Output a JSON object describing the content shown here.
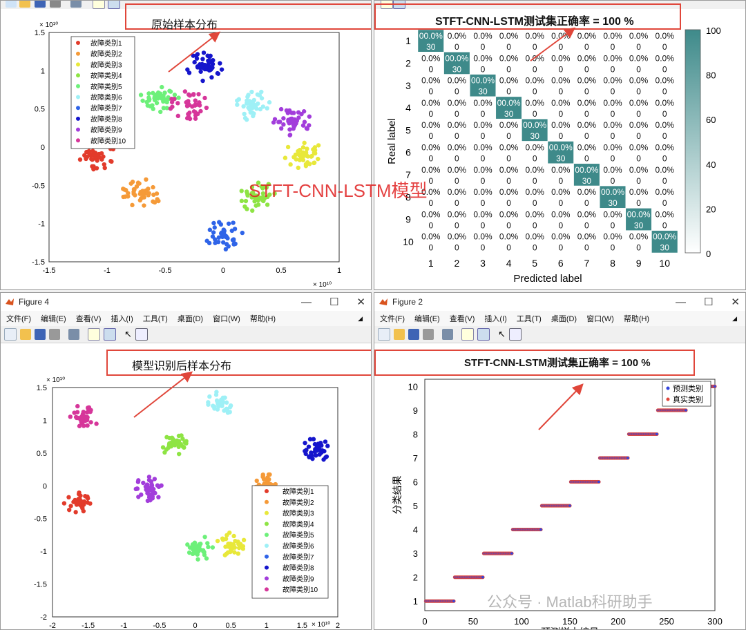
{
  "colors": {
    "c1": "#e23b2b",
    "c2": "#f59a38",
    "c3": "#e8e83a",
    "c4": "#8ee444",
    "c5": "#6df07a",
    "c6": "#9ef0f6",
    "c7": "#2f64e8",
    "c8": "#1515cc",
    "c9": "#a23ddb",
    "c10": "#d6369a",
    "accent_red": "#e0463a",
    "cm_dark": "#3e8a8a"
  },
  "top_left": {
    "annotation": "原始样本分布",
    "y_exp": "× 10¹⁰",
    "x_exp": "× 10¹⁰",
    "yticks": [
      "1.5",
      "1",
      "0.5",
      "0",
      "-0.5",
      "-1",
      "-1.5"
    ],
    "xticks": [
      "-1.5",
      "-1",
      "-0.5",
      "0",
      "0.5",
      "1"
    ],
    "legend": [
      "故障类别1",
      "故障类别2",
      "故障类别3",
      "故障类别4",
      "故障类别5",
      "故障类别6",
      "故障类别7",
      "故障类别8",
      "故障类别9",
      "故障类别10"
    ],
    "overlay_text": "STFT-CNN-LSTM模型"
  },
  "top_right": {
    "title": "STFT-CNN-LSTM测试集正确率 = 100 %",
    "ylabel": "Real label",
    "xlabel": "Predicted label",
    "diag_top": "00.0%",
    "diag_bottom": "30",
    "off_top": "0.0%",
    "off_bottom": "0",
    "ticks": [
      "1",
      "2",
      "3",
      "4",
      "5",
      "6",
      "7",
      "8",
      "9",
      "10"
    ],
    "colorbar_ticks": [
      "100",
      "80",
      "60",
      "40",
      "20",
      "0"
    ]
  },
  "bottom_left": {
    "title": "Figure 4",
    "menus": [
      "文件(F)",
      "编辑(E)",
      "查看(V)",
      "插入(I)",
      "工具(T)",
      "桌面(D)",
      "窗口(W)",
      "帮助(H)"
    ],
    "annotation": "模型识别后样本分布",
    "y_exp": "× 10¹⁰",
    "x_exp": "× 10¹⁰",
    "yticks": [
      "1.5",
      "1",
      "0.5",
      "0",
      "-0.5",
      "-1",
      "-1.5",
      "-2"
    ],
    "xticks": [
      "-2",
      "-1.5",
      "-1",
      "-0.5",
      "0",
      "0.5",
      "1",
      "1.5",
      "2"
    ],
    "legend": [
      "故障类别1",
      "故障类别2",
      "故障类别3",
      "故障类别4",
      "故障类别5",
      "故障类别6",
      "故障类别7",
      "故障类别8",
      "故障类别9",
      "故障类别10"
    ]
  },
  "bottom_right": {
    "title": "Figure 2",
    "menus": [
      "文件(F)",
      "编辑(E)",
      "查看(V)",
      "插入(I)",
      "工具(T)",
      "桌面(D)",
      "窗口(W)",
      "帮助(H)"
    ],
    "chart_title": "STFT-CNN-LSTM测试集正确率 = 100 %",
    "ylabel": "分类结果",
    "xlabel": "预测样本编号",
    "legend": [
      "预测类别",
      "真实类别"
    ],
    "watermark": "公众号 · Matlab科研助手"
  },
  "chart_data": [
    {
      "type": "scatter",
      "title": "",
      "xlabel": "",
      "ylabel": "",
      "xlim": [
        -1.5,
        1.0
      ],
      "ylim": [
        -1.5,
        1.5
      ],
      "clusters": [
        {
          "name": "故障类别1",
          "center": [
            -1.1,
            -0.1
          ]
        },
        {
          "name": "故障类别2",
          "center": [
            -0.7,
            -0.6
          ]
        },
        {
          "name": "故障类别3",
          "center": [
            0.7,
            -0.1
          ]
        },
        {
          "name": "故障类别4",
          "center": [
            0.3,
            -0.65
          ]
        },
        {
          "name": "故障类别5",
          "center": [
            -0.55,
            0.65
          ]
        },
        {
          "name": "故障类别6",
          "center": [
            0.25,
            0.55
          ]
        },
        {
          "name": "故障类别7",
          "center": [
            0.0,
            -1.15
          ]
        },
        {
          "name": "故障类别8",
          "center": [
            -0.15,
            1.05
          ]
        },
        {
          "name": "故障类别9",
          "center": [
            0.6,
            0.35
          ]
        },
        {
          "name": "故障类别10",
          "center": [
            -0.3,
            0.55
          ]
        }
      ]
    },
    {
      "type": "heatmap",
      "title": "STFT-CNN-LSTM测试集正确率 = 100 %",
      "xlabel": "Predicted label",
      "ylabel": "Real label",
      "categories": [
        1,
        2,
        3,
        4,
        5,
        6,
        7,
        8,
        9,
        10
      ],
      "diagonal": 30,
      "offdiagonal": 0,
      "clim": [
        0,
        100
      ]
    },
    {
      "type": "scatter",
      "title": "",
      "xlabel": "",
      "ylabel": "",
      "xlim": [
        -2,
        2
      ],
      "ylim": [
        -2,
        1.5
      ],
      "clusters": [
        {
          "name": "故障类别1",
          "center": [
            -1.65,
            -0.25
          ]
        },
        {
          "name": "故障类别2",
          "center": [
            1.0,
            0.0
          ]
        },
        {
          "name": "故障类别3",
          "center": [
            0.5,
            -0.9
          ]
        },
        {
          "name": "故障类别4",
          "center": [
            -0.3,
            0.65
          ]
        },
        {
          "name": "故障类别5",
          "center": [
            0.05,
            -0.95
          ]
        },
        {
          "name": "故障类别6",
          "center": [
            0.35,
            1.25
          ]
        },
        {
          "name": "故障类别7",
          "center": [
            1.05,
            -1.2
          ]
        },
        {
          "name": "故障类别8",
          "center": [
            1.7,
            0.55
          ]
        },
        {
          "name": "故障类别9",
          "center": [
            -0.65,
            -0.05
          ]
        },
        {
          "name": "故障类别10",
          "center": [
            -1.55,
            1.05
          ]
        }
      ]
    },
    {
      "type": "scatter",
      "title": "STFT-CNN-LSTM测试集正确率 = 100 %",
      "xlabel": "预测样本编号",
      "ylabel": "分类结果",
      "xlim": [
        0,
        300
      ],
      "ylim": [
        0.6,
        10.3
      ],
      "xticks": [
        0,
        50,
        100,
        150,
        200,
        250,
        300
      ],
      "yticks": [
        1,
        2,
        3,
        4,
        5,
        6,
        7,
        8,
        9,
        10
      ],
      "series": [
        {
          "name": "预测类别",
          "samples_per_class": 30,
          "classes": [
            1,
            2,
            3,
            4,
            5,
            6,
            7,
            8,
            9,
            10
          ]
        },
        {
          "name": "真实类别",
          "samples_per_class": 30,
          "classes": [
            1,
            2,
            3,
            4,
            5,
            6,
            7,
            8,
            9,
            10
          ]
        }
      ]
    }
  ]
}
